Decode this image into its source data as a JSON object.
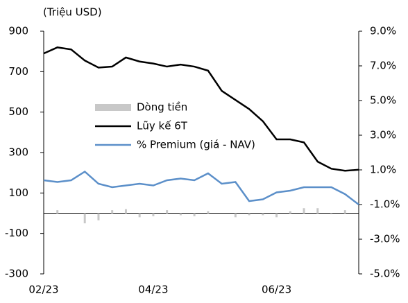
{
  "chart_data": {
    "type": "combo",
    "title": "(Triệu USD)",
    "categories": [
      "02/23",
      null,
      null,
      null,
      null,
      null,
      null,
      null,
      "04/23",
      null,
      null,
      null,
      null,
      null,
      null,
      null,
      null,
      "06/23",
      null,
      null,
      null,
      null,
      null,
      null
    ],
    "ylim": [
      -300,
      900
    ],
    "yticks": [
      -300,
      -100,
      100,
      300,
      500,
      700,
      900
    ],
    "y2lim": [
      -5,
      9
    ],
    "y2ticks": [
      {
        "value": -5,
        "label": "-5.0%"
      },
      {
        "value": -3,
        "label": "-3.0%"
      },
      {
        "value": -1,
        "label": "-1.0%"
      },
      {
        "value": 1,
        "label": "1.0%"
      },
      {
        "value": 3,
        "label": "3.0%"
      },
      {
        "value": 5,
        "label": "5.0%"
      },
      {
        "value": 7,
        "label": "7.0%"
      },
      {
        "value": 9,
        "label": "9.0%"
      }
    ],
    "series": [
      {
        "name": "Dòng tiền",
        "type": "bar",
        "color": "#c8c8c8",
        "values": [
          0,
          15,
          0,
          -50,
          -35,
          15,
          20,
          -20,
          -15,
          15,
          -10,
          -15,
          10,
          0,
          -20,
          -10,
          -10,
          -20,
          10,
          25,
          25,
          -5,
          15,
          0
        ]
      },
      {
        "name": "Lũy kế 6T",
        "type": "line",
        "color": "#000000",
        "values": [
          790,
          820,
          810,
          755,
          720,
          725,
          770,
          750,
          740,
          725,
          735,
          725,
          705,
          605,
          560,
          515,
          455,
          365,
          365,
          350,
          255,
          220,
          210,
          215
        ]
      },
      {
        "name": "% Premium (giá - NAV)",
        "type": "line",
        "axis": "y2",
        "color": "#5b8fc9",
        "values": [
          0.4,
          0.3,
          0.4,
          0.9,
          0.2,
          0.0,
          0.1,
          0.2,
          0.1,
          0.4,
          0.5,
          0.4,
          0.8,
          0.2,
          0.3,
          -0.8,
          -0.7,
          -0.3,
          -0.2,
          0.0,
          0.0,
          0.0,
          -0.4,
          -1.0
        ]
      }
    ]
  }
}
